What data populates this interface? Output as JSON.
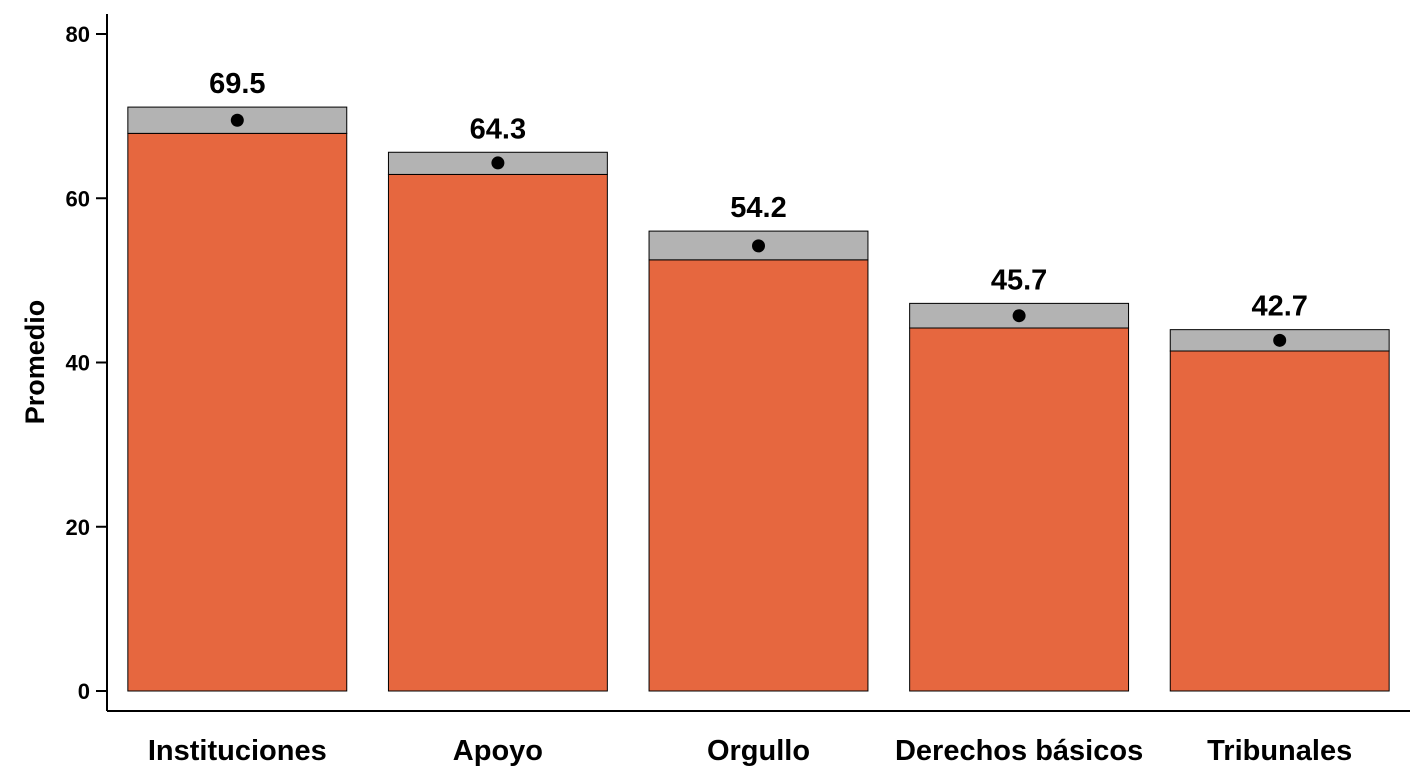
{
  "chart_data": {
    "type": "bar",
    "title": "",
    "xlabel": "",
    "ylabel": "Promedio",
    "ylim": [
      0,
      80
    ],
    "yticks": [
      0,
      20,
      40,
      60,
      80
    ],
    "categories": [
      "Instituciones",
      "Apoyo",
      "Orgullo",
      "Derechos básicos",
      "Tribunales"
    ],
    "values": [
      69.5,
      64.3,
      54.2,
      45.7,
      42.7
    ],
    "value_labels": [
      "69.5",
      "64.3",
      "54.2",
      "45.7",
      "42.7"
    ],
    "ci_lower": [
      67.9,
      62.9,
      52.5,
      44.2,
      41.4
    ],
    "ci_upper": [
      71.1,
      65.6,
      56.0,
      47.2,
      44.0
    ],
    "grid": false,
    "legend": "none",
    "colors": {
      "bar": "#E6673F",
      "ci_band": "#B3B3B3",
      "outline": "#000000",
      "point": "#000000"
    }
  }
}
